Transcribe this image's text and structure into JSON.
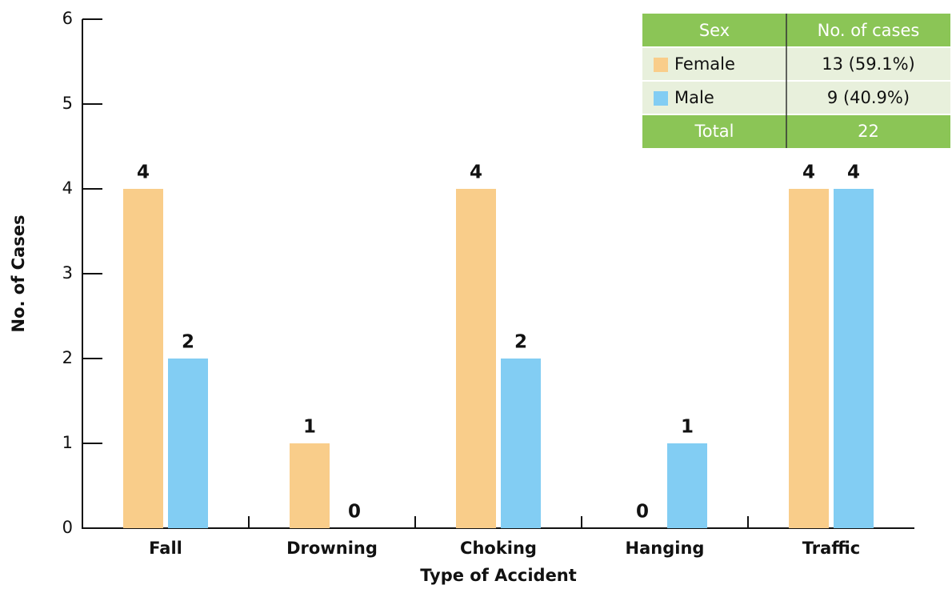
{
  "chart_data": {
    "type": "bar",
    "x_label": "Type of Accident",
    "y_label": "No. of Cases",
    "categories": [
      "Fall",
      "Drowning",
      "Choking",
      "Hanging",
      "Traffic"
    ],
    "series": [
      {
        "name": "Female",
        "color": "#f9cd8a",
        "values": [
          4,
          1,
          4,
          0,
          4
        ]
      },
      {
        "name": "Male",
        "color": "#82cdf3",
        "values": [
          2,
          0,
          2,
          1,
          4
        ]
      }
    ],
    "ylim": [
      0,
      6
    ],
    "yticks": [
      0,
      1,
      2,
      3,
      4,
      5,
      6
    ],
    "legend_table": {
      "header": [
        "Sex",
        "No. of cases"
      ],
      "rows": [
        [
          "Female",
          "13 (59.1%)"
        ],
        [
          "Male",
          "9 (40.9%)"
        ]
      ],
      "total": [
        "Total",
        "22"
      ]
    }
  }
}
